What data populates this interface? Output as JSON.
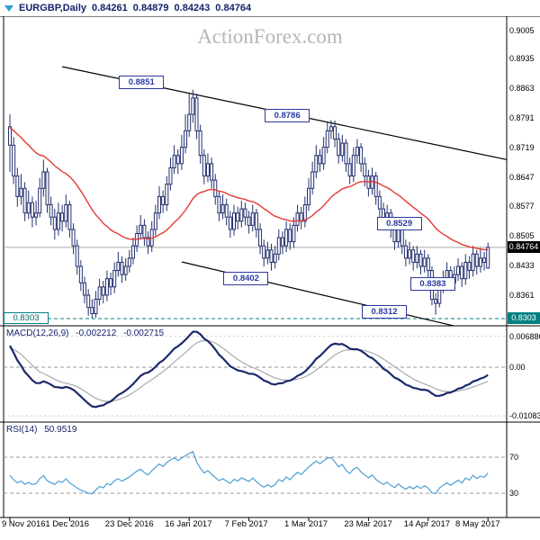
{
  "header": {
    "symbol_period": "EURGBP,Daily",
    "open": "0.84261",
    "high": "0.84879",
    "low": "0.84243",
    "close": "0.84764"
  },
  "watermark": "ActionForex.com",
  "price_axis": {
    "current_price_label": "0.84764",
    "support_label": "0.8303"
  },
  "macd_panel": {
    "label": "MACD(12,26,9)",
    "macd_value": "-0.002212",
    "signal_value": "-0.002715"
  },
  "rsi_panel": {
    "label": "RSI(14)",
    "value": "50.9519"
  },
  "colors": {
    "candle": "#232f6e",
    "ma": "#e53935",
    "macd": "#1b2a6b",
    "macd_signal": "#aaaaaa",
    "rsi": "#4a9fd4",
    "level_teal": "#008080",
    "annotation_blue": "#2b3aa0",
    "current_price_bg": "#000000",
    "watermark_gray": "#b5b5b5",
    "title_navy": "#14226b"
  },
  "chart_data": {
    "type": "candlestick",
    "symbol": "EURGBP",
    "timeframe": "Daily",
    "title": "EURGBP,Daily 0.84261 0.84879 0.84243 0.84764",
    "ylim": [
      0.8267,
      0.9039
    ],
    "y_ticks": [
      0.9005,
      0.8935,
      0.8863,
      0.8791,
      0.8719,
      0.8647,
      0.8577,
      0.8505,
      0.8433,
      0.8361
    ],
    "current_price": 0.84764,
    "support_level": 0.8303,
    "x_tick_labels": [
      "9 Nov 2016",
      "1 Dec 2016",
      "23 Dec 2016",
      "16 Jan 2017",
      "7 Feb 2017",
      "1 Mar 2017",
      "23 Mar 2017",
      "14 Apr 2017",
      "8 May 2017"
    ],
    "x_tick_bars": [
      0,
      16,
      32,
      48,
      64,
      80,
      96,
      112,
      128
    ],
    "overlays": [
      {
        "name": "Moving Average",
        "type": "ema",
        "period": 34,
        "color": "#e53935"
      }
    ],
    "annotations": [
      {
        "label": "0.8851",
        "bar": 35,
        "price": 0.8878
      },
      {
        "label": "0.8786",
        "bar": 74,
        "price": 0.8797
      },
      {
        "label": "0.8529",
        "bar": 104,
        "price": 0.8536
      },
      {
        "label": "0.8402",
        "bar": 63,
        "price": 0.8401
      },
      {
        "label": "0.8383",
        "bar": 113,
        "price": 0.8389
      },
      {
        "label": "0.8312",
        "bar": 100,
        "price": 0.8321
      }
    ],
    "trend_lines": [
      {
        "bar1": 14,
        "price1": 0.8916,
        "bar2": 133,
        "price2": 0.869
      },
      {
        "bar1": 46,
        "price1": 0.8441,
        "bar2": 119,
        "price2": 0.8285
      }
    ],
    "indicators": [
      {
        "name": "MACD",
        "params": "12,26,9",
        "values": [
          -0.002212,
          -0.002715
        ],
        "axis_marks": [
          0.006886,
          0,
          -0.010832
        ],
        "axis_marks_labels": [
          "0.006886",
          "0.00",
          "-0.010832"
        ]
      },
      {
        "name": "RSI",
        "params": "14",
        "value": 50.9519,
        "axis_marks": [
          70,
          30
        ],
        "axis_marks_labels": [
          "70",
          "30"
        ]
      }
    ],
    "ohlc": [
      [
        0.877,
        0.88,
        0.866,
        0.8725
      ],
      [
        0.8725,
        0.8745,
        0.863,
        0.865
      ],
      [
        0.865,
        0.867,
        0.8575,
        0.86
      ],
      [
        0.86,
        0.8655,
        0.858,
        0.862
      ],
      [
        0.862,
        0.8635,
        0.854,
        0.856
      ],
      [
        0.856,
        0.8615,
        0.8545,
        0.8585
      ],
      [
        0.8585,
        0.86,
        0.8525,
        0.855
      ],
      [
        0.855,
        0.859,
        0.853,
        0.856
      ],
      [
        0.856,
        0.8645,
        0.855,
        0.862
      ],
      [
        0.862,
        0.869,
        0.86,
        0.866
      ],
      [
        0.866,
        0.867,
        0.856,
        0.858
      ],
      [
        0.858,
        0.86,
        0.853,
        0.855
      ],
      [
        0.855,
        0.857,
        0.8495,
        0.852
      ],
      [
        0.852,
        0.8585,
        0.8505,
        0.856
      ],
      [
        0.856,
        0.858,
        0.8515,
        0.854
      ],
      [
        0.854,
        0.8605,
        0.8525,
        0.858
      ],
      [
        0.858,
        0.859,
        0.85,
        0.852
      ],
      [
        0.852,
        0.8535,
        0.846,
        0.848
      ],
      [
        0.848,
        0.8495,
        0.841,
        0.843
      ],
      [
        0.843,
        0.8445,
        0.837,
        0.839
      ],
      [
        0.839,
        0.8405,
        0.834,
        0.836
      ],
      [
        0.836,
        0.8375,
        0.831,
        0.833
      ],
      [
        0.833,
        0.835,
        0.8303,
        0.8315
      ],
      [
        0.8315,
        0.837,
        0.8305,
        0.835
      ],
      [
        0.835,
        0.84,
        0.8335,
        0.838
      ],
      [
        0.838,
        0.8395,
        0.834,
        0.836
      ],
      [
        0.836,
        0.842,
        0.8345,
        0.84
      ],
      [
        0.84,
        0.8415,
        0.836,
        0.838
      ],
      [
        0.838,
        0.844,
        0.8365,
        0.842
      ],
      [
        0.842,
        0.8465,
        0.8405,
        0.844
      ],
      [
        0.844,
        0.8455,
        0.839,
        0.841
      ],
      [
        0.841,
        0.845,
        0.8395,
        0.843
      ],
      [
        0.843,
        0.847,
        0.8415,
        0.845
      ],
      [
        0.845,
        0.85,
        0.8435,
        0.848
      ],
      [
        0.848,
        0.853,
        0.8465,
        0.851
      ],
      [
        0.851,
        0.8555,
        0.8495,
        0.853
      ],
      [
        0.853,
        0.8545,
        0.848,
        0.85
      ],
      [
        0.85,
        0.8515,
        0.846,
        0.848
      ],
      [
        0.848,
        0.854,
        0.8465,
        0.852
      ],
      [
        0.852,
        0.858,
        0.8505,
        0.856
      ],
      [
        0.856,
        0.8625,
        0.8545,
        0.86
      ],
      [
        0.86,
        0.8615,
        0.856,
        0.858
      ],
      [
        0.858,
        0.865,
        0.8565,
        0.863
      ],
      [
        0.863,
        0.8695,
        0.8615,
        0.867
      ],
      [
        0.867,
        0.8725,
        0.8655,
        0.87
      ],
      [
        0.87,
        0.8715,
        0.8655,
        0.868
      ],
      [
        0.868,
        0.875,
        0.8665,
        0.872
      ],
      [
        0.872,
        0.88,
        0.8705,
        0.876
      ],
      [
        0.876,
        0.8851,
        0.8745,
        0.88
      ],
      [
        0.88,
        0.886,
        0.878,
        0.884
      ],
      [
        0.884,
        0.885,
        0.874,
        0.876
      ],
      [
        0.876,
        0.8775,
        0.868,
        0.87
      ],
      [
        0.87,
        0.8715,
        0.863,
        0.865
      ],
      [
        0.865,
        0.8705,
        0.8635,
        0.868
      ],
      [
        0.868,
        0.8695,
        0.862,
        0.864
      ],
      [
        0.864,
        0.8655,
        0.858,
        0.86
      ],
      [
        0.86,
        0.8615,
        0.854,
        0.856
      ],
      [
        0.856,
        0.8605,
        0.8545,
        0.858
      ],
      [
        0.858,
        0.8595,
        0.853,
        0.855
      ],
      [
        0.855,
        0.8565,
        0.85,
        0.852
      ],
      [
        0.852,
        0.858,
        0.8505,
        0.856
      ],
      [
        0.856,
        0.8575,
        0.852,
        0.854
      ],
      [
        0.854,
        0.859,
        0.8525,
        0.857
      ],
      [
        0.857,
        0.8585,
        0.853,
        0.855
      ],
      [
        0.855,
        0.8565,
        0.851,
        0.853
      ],
      [
        0.853,
        0.858,
        0.8515,
        0.856
      ],
      [
        0.856,
        0.857,
        0.85,
        0.852
      ],
      [
        0.852,
        0.8535,
        0.846,
        0.848
      ],
      [
        0.848,
        0.8495,
        0.843,
        0.845
      ],
      [
        0.845,
        0.849,
        0.8435,
        0.847
      ],
      [
        0.847,
        0.8485,
        0.842,
        0.844
      ],
      [
        0.844,
        0.848,
        0.8425,
        0.846
      ],
      [
        0.846,
        0.852,
        0.8445,
        0.85
      ],
      [
        0.85,
        0.8515,
        0.846,
        0.848
      ],
      [
        0.848,
        0.854,
        0.8465,
        0.852
      ],
      [
        0.852,
        0.8535,
        0.847,
        0.849
      ],
      [
        0.849,
        0.855,
        0.8475,
        0.853
      ],
      [
        0.853,
        0.858,
        0.8515,
        0.856
      ],
      [
        0.856,
        0.8575,
        0.852,
        0.854
      ],
      [
        0.854,
        0.86,
        0.8525,
        0.858
      ],
      [
        0.858,
        0.8645,
        0.8565,
        0.862
      ],
      [
        0.862,
        0.8685,
        0.8605,
        0.866
      ],
      [
        0.866,
        0.8725,
        0.8645,
        0.87
      ],
      [
        0.87,
        0.8715,
        0.866,
        0.868
      ],
      [
        0.868,
        0.8745,
        0.8665,
        0.872
      ],
      [
        0.872,
        0.878,
        0.8705,
        0.876
      ],
      [
        0.876,
        0.8786,
        0.874,
        0.877
      ],
      [
        0.877,
        0.8785,
        0.872,
        0.874
      ],
      [
        0.874,
        0.8755,
        0.868,
        0.87
      ],
      [
        0.87,
        0.875,
        0.8685,
        0.873
      ],
      [
        0.873,
        0.874,
        0.866,
        0.868
      ],
      [
        0.868,
        0.8695,
        0.863,
        0.865
      ],
      [
        0.865,
        0.872,
        0.8635,
        0.87
      ],
      [
        0.87,
        0.874,
        0.868,
        0.872
      ],
      [
        0.872,
        0.873,
        0.866,
        0.868
      ],
      [
        0.868,
        0.8695,
        0.8625,
        0.865
      ],
      [
        0.865,
        0.8665,
        0.86,
        0.862
      ],
      [
        0.862,
        0.867,
        0.8605,
        0.865
      ],
      [
        0.865,
        0.866,
        0.858,
        0.86
      ],
      [
        0.86,
        0.8615,
        0.855,
        0.857
      ],
      [
        0.857,
        0.8585,
        0.852,
        0.854
      ],
      [
        0.854,
        0.858,
        0.8525,
        0.856
      ],
      [
        0.856,
        0.857,
        0.85,
        0.852
      ],
      [
        0.852,
        0.8535,
        0.847,
        0.849
      ],
      [
        0.849,
        0.854,
        0.8475,
        0.852
      ],
      [
        0.852,
        0.853,
        0.846,
        0.848
      ],
      [
        0.848,
        0.8495,
        0.843,
        0.845
      ],
      [
        0.845,
        0.849,
        0.8435,
        0.847
      ],
      [
        0.847,
        0.848,
        0.842,
        0.844
      ],
      [
        0.844,
        0.848,
        0.8425,
        0.846
      ],
      [
        0.846,
        0.847,
        0.841,
        0.843
      ],
      [
        0.843,
        0.847,
        0.8415,
        0.845
      ],
      [
        0.845,
        0.846,
        0.84,
        0.842
      ],
      [
        0.842,
        0.843,
        0.8335,
        0.835
      ],
      [
        0.835,
        0.8365,
        0.8312,
        0.834
      ],
      [
        0.834,
        0.8395,
        0.833,
        0.838
      ],
      [
        0.838,
        0.842,
        0.8365,
        0.84
      ],
      [
        0.84,
        0.844,
        0.8385,
        0.842
      ],
      [
        0.842,
        0.843,
        0.837,
        0.839
      ],
      [
        0.839,
        0.843,
        0.8375,
        0.841
      ],
      [
        0.841,
        0.845,
        0.8395,
        0.843
      ],
      [
        0.843,
        0.844,
        0.838,
        0.84
      ],
      [
        0.84,
        0.846,
        0.8385,
        0.844
      ],
      [
        0.844,
        0.8455,
        0.84,
        0.842
      ],
      [
        0.842,
        0.848,
        0.8405,
        0.846
      ],
      [
        0.846,
        0.847,
        0.841,
        0.843
      ],
      [
        0.843,
        0.8475,
        0.8415,
        0.845
      ],
      [
        0.845,
        0.8465,
        0.842,
        0.844
      ],
      [
        0.84261,
        0.84879,
        0.84243,
        0.84764
      ]
    ]
  }
}
